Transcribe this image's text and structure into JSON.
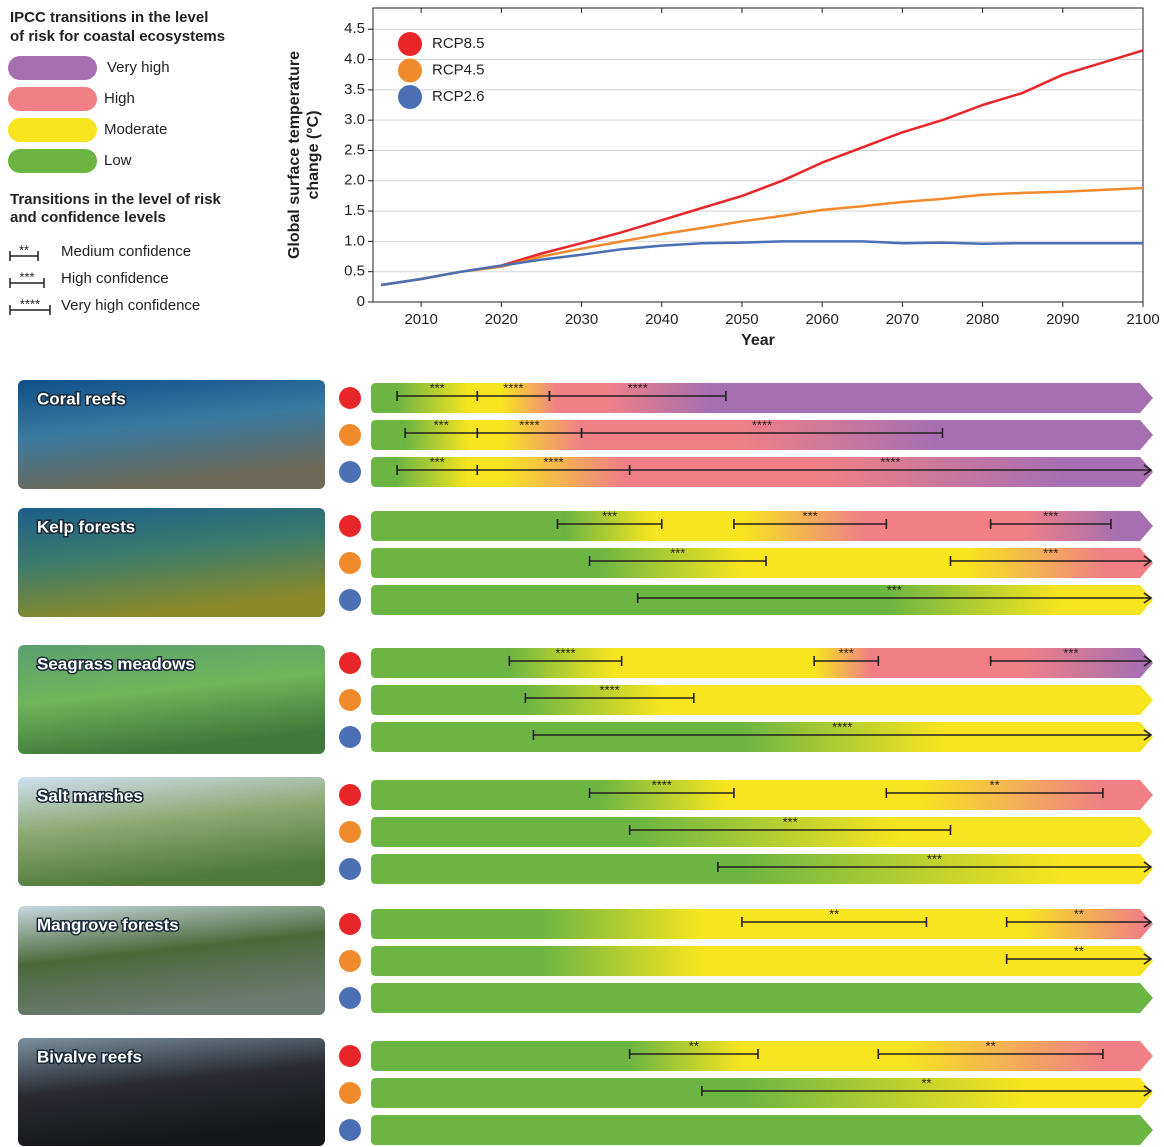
{
  "legend": {
    "title": [
      "IPCC transitions in the level",
      "of risk for coastal ecosystems"
    ],
    "levels": [
      {
        "label": "Very high",
        "color": "#a66fb2"
      },
      {
        "label": "High",
        "color": "#f08086"
      },
      {
        "label": "Moderate",
        "color": "#f8e51f"
      },
      {
        "label": "Low",
        "color": "#6cb543"
      }
    ],
    "confidence_title": [
      "Transitions in the level of risk",
      "and confidence levels"
    ],
    "confidence": [
      {
        "stars": "**",
        "label": "Medium confidence"
      },
      {
        "stars": "***",
        "label": "High confidence"
      },
      {
        "stars": "****",
        "label": "Very high confidence"
      }
    ]
  },
  "chart_data": {
    "type": "line",
    "ylabel": [
      "Global surface temperature",
      "change (°C)"
    ],
    "xlabel": "Year",
    "x": [
      2005,
      2010,
      2015,
      2020,
      2025,
      2030,
      2035,
      2040,
      2045,
      2050,
      2055,
      2060,
      2065,
      2070,
      2075,
      2080,
      2085,
      2090,
      2095,
      2100
    ],
    "series": [
      {
        "name": "RCP8.5",
        "color": "#e8262a",
        "values": [
          0.28,
          0.38,
          0.5,
          0.6,
          0.8,
          0.97,
          1.15,
          1.35,
          1.55,
          1.75,
          2.0,
          2.3,
          2.55,
          2.8,
          3.0,
          3.25,
          3.45,
          3.75,
          3.95,
          4.15
        ]
      },
      {
        "name": "RCP4.5",
        "color": "#f08a2c",
        "values": [
          0.28,
          0.38,
          0.5,
          0.58,
          0.75,
          0.88,
          1.0,
          1.12,
          1.22,
          1.33,
          1.42,
          1.52,
          1.58,
          1.65,
          1.7,
          1.77,
          1.8,
          1.82,
          1.85,
          1.88
        ]
      },
      {
        "name": "RCP2.6",
        "color": "#4a6fb5",
        "values": [
          0.28,
          0.38,
          0.5,
          0.6,
          0.7,
          0.78,
          0.87,
          0.93,
          0.97,
          0.98,
          1.0,
          1.0,
          1.0,
          0.97,
          0.98,
          0.96,
          0.97,
          0.97,
          0.97,
          0.97
        ]
      }
    ],
    "xlim": [
      2004,
      2100
    ],
    "ylim": [
      0,
      4.85
    ],
    "xticks": [
      2010,
      2020,
      2030,
      2040,
      2050,
      2060,
      2070,
      2080,
      2090,
      2100
    ],
    "yticks": [
      0,
      0.5,
      {
        "value": 1,
        "label": "1.0"
      },
      1.5,
      {
        "value": 2,
        "label": "2.0"
      },
      2.5,
      {
        "value": 3,
        "label": "3.0"
      },
      3.5,
      {
        "value": 4,
        "label": "4.0"
      },
      4.5
    ],
    "grid": true,
    "legend_position": "upper left"
  },
  "ecosystems": [
    {
      "name": "Coral reefs",
      "scenarios": [
        {
          "gradient": [
            [
              2007,
              3
            ],
            [
              2016,
              2
            ],
            [
              2020,
              2
            ],
            [
              2027,
              1
            ],
            [
              2033,
              1
            ],
            [
              2046,
              0
            ]
          ],
          "ranges": [
            {
              "from": 2007,
              "to": 2017,
              "label": "***"
            },
            {
              "from": 2017,
              "to": 2026,
              "label": "****"
            },
            {
              "from": 2026,
              "to": 2048,
              "label": "****"
            }
          ]
        },
        {
          "gradient": [
            [
              2008,
              3
            ],
            [
              2016,
              2
            ],
            [
              2020,
              2
            ],
            [
              2030,
              1
            ],
            [
              2050,
              1
            ],
            [
              2074,
              0
            ]
          ],
          "ranges": [
            {
              "from": 2008,
              "to": 2017,
              "label": "***"
            },
            {
              "from": 2017,
              "to": 2030,
              "label": "****"
            },
            {
              "from": 2030,
              "to": 2075,
              "label": "****"
            }
          ]
        },
        {
          "gradient": [
            [
              2007,
              3
            ],
            [
              2016,
              2
            ],
            [
              2020,
              2
            ],
            [
              2035,
              1
            ],
            [
              2060,
              1
            ],
            [
              2090,
              0
            ]
          ],
          "ranges": [
            {
              "from": 2007,
              "to": 2017,
              "label": "***"
            },
            {
              "from": 2017,
              "to": 2036,
              "label": "****"
            },
            {
              "from": 2036,
              "to": 2100,
              "label": "****"
            }
          ]
        }
      ]
    },
    {
      "name": "Kelp forests",
      "scenarios": [
        {
          "gradient": [
            [
              2028,
              3
            ],
            [
              2039,
              2
            ],
            [
              2050,
              2
            ],
            [
              2065,
              1
            ],
            [
              2085,
              1
            ],
            [
              2097,
              0
            ]
          ],
          "ranges": [
            {
              "from": 2027,
              "to": 2040,
              "label": "***"
            },
            {
              "from": 2049,
              "to": 2068,
              "label": "***"
            },
            {
              "from": 2081,
              "to": 2096,
              "label": "***"
            }
          ]
        },
        {
          "gradient": [
            [
              2032,
              3
            ],
            [
              2050,
              2
            ],
            [
              2078,
              2
            ],
            [
              2095,
              1
            ]
          ],
          "ranges": [
            {
              "from": 2031,
              "to": 2053,
              "label": "***"
            },
            {
              "from": 2076,
              "to": 2100,
              "label": "***"
            }
          ]
        },
        {
          "gradient": [
            [
              2068,
              3
            ],
            [
              2090,
              2
            ]
          ],
          "ranges": [
            {
              "from": 2037,
              "to": 2100,
              "label": "***"
            }
          ]
        }
      ]
    },
    {
      "name": "Seagrass meadows",
      "scenarios": [
        {
          "gradient": [
            [
              2021,
              3
            ],
            [
              2034,
              2
            ],
            [
              2059,
              2
            ],
            [
              2066,
              1
            ],
            [
              2085,
              1
            ],
            [
              2100,
              0
            ]
          ],
          "ranges": [
            {
              "from": 2021,
              "to": 2035,
              "label": "****"
            },
            {
              "from": 2059,
              "to": 2067,
              "label": "***"
            },
            {
              "from": 2081,
              "to": 2100,
              "label": "***"
            }
          ]
        },
        {
          "gradient": [
            [
              2023,
              3
            ],
            [
              2040,
              2
            ]
          ],
          "ranges": [
            {
              "from": 2023,
              "to": 2044,
              "label": "****"
            }
          ]
        },
        {
          "gradient": [
            [
              2050,
              3
            ],
            [
              2075,
              2
            ]
          ],
          "ranges": [
            {
              "from": 2024,
              "to": 2100,
              "label": "****"
            }
          ]
        }
      ]
    },
    {
      "name": "Salt marshes",
      "scenarios": [
        {
          "gradient": [
            [
              2032,
              3
            ],
            [
              2048,
              2
            ],
            [
              2072,
              2
            ],
            [
              2095,
              1
            ]
          ],
          "ranges": [
            {
              "from": 2031,
              "to": 2049,
              "label": "****"
            },
            {
              "from": 2068,
              "to": 2095,
              "label": "**"
            }
          ]
        },
        {
          "gradient": [
            [
              2037,
              3
            ],
            [
              2070,
              2
            ]
          ],
          "ranges": [
            {
              "from": 2036,
              "to": 2076,
              "label": "***"
            }
          ]
        },
        {
          "gradient": [
            [
              2050,
              3
            ],
            [
              2090,
              2
            ]
          ],
          "ranges": [
            {
              "from": 2047,
              "to": 2100,
              "label": "***"
            }
          ]
        }
      ]
    },
    {
      "name": "Mangrove forests",
      "scenarios": [
        {
          "gradient": [
            [
              2025,
              3
            ],
            [
              2045,
              2
            ],
            [
              2085,
              2
            ],
            [
              2100,
              1
            ]
          ],
          "ranges": [
            {
              "from": 2050,
              "to": 2073,
              "label": "**"
            },
            {
              "from": 2083,
              "to": 2100,
              "label": "**"
            }
          ]
        },
        {
          "gradient": [
            [
              2025,
              3
            ],
            [
              2045,
              2
            ]
          ],
          "ranges": [
            {
              "from": 2083,
              "to": 2100,
              "label": "**"
            }
          ]
        },
        {
          "gradient": [
            [
              2100,
              3
            ]
          ],
          "ranges": []
        }
      ]
    },
    {
      "name": "Bivalve reefs",
      "scenarios": [
        {
          "gradient": [
            [
              2036,
              3
            ],
            [
              2050,
              2
            ],
            [
              2070,
              2
            ],
            [
              2095,
              1
            ]
          ],
          "ranges": [
            {
              "from": 2036,
              "to": 2052,
              "label": "**"
            },
            {
              "from": 2067,
              "to": 2095,
              "label": "**"
            }
          ]
        },
        {
          "gradient": [
            [
              2050,
              3
            ],
            [
              2085,
              2
            ]
          ],
          "ranges": [
            {
              "from": 2045,
              "to": 2100,
              "label": "**"
            }
          ]
        },
        {
          "gradient": [
            [
              2100,
              3
            ]
          ],
          "ranges": []
        }
      ]
    }
  ]
}
